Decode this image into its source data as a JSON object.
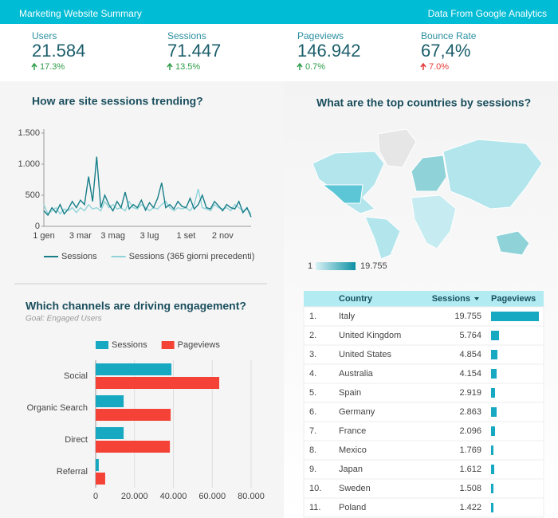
{
  "header": {
    "title": "Marketing Website Summary",
    "source": "Data From Google Analytics"
  },
  "kpis": [
    {
      "label": "Users",
      "value": "21.584",
      "change": "17.3%",
      "change_color": "#2e9d48"
    },
    {
      "label": "Sessions",
      "value": "71.447",
      "change": "13.5%",
      "change_color": "#2e9d48"
    },
    {
      "label": "Pageviews",
      "value": "146.942",
      "change": "0.7%",
      "change_color": "#2e9d48"
    },
    {
      "label": "Bounce Rate",
      "value": "67,4%",
      "change": "7.0%",
      "change_color": "#e53935"
    }
  ],
  "chart_data": [
    {
      "type": "line",
      "title": "How are site sessions trending?",
      "categories": [
        "1 gen",
        null,
        null,
        null,
        null,
        null,
        null,
        null,
        null,
        "3 mar",
        null,
        null,
        null,
        null,
        null,
        null,
        null,
        "3 mag",
        null,
        null,
        null,
        null,
        null,
        null,
        null,
        null,
        "3 lug",
        null,
        null,
        null,
        null,
        null,
        null,
        null,
        null,
        "1 set",
        null,
        null,
        null,
        null,
        null,
        null,
        null,
        null,
        "2 nov",
        null,
        null,
        null,
        null,
        null,
        null,
        null
      ],
      "series": [
        {
          "name": "Sessions",
          "color": "#177e89",
          "values": [
            250,
            180,
            300,
            220,
            350,
            200,
            280,
            400,
            300,
            420,
            350,
            800,
            400,
            1120,
            300,
            500,
            350,
            250,
            400,
            300,
            550,
            280,
            350,
            300,
            420,
            260,
            380,
            300,
            450,
            700,
            300,
            350,
            280,
            400,
            320,
            300,
            450,
            280,
            350,
            500,
            300,
            280,
            400,
            330,
            250,
            350,
            300,
            280,
            400,
            220,
            300,
            150
          ]
        },
        {
          "name": "Sessions (365 giorni precedenti)",
          "color": "#8fd3d9",
          "values": [
            350,
            200,
            250,
            300,
            200,
            280,
            250,
            300,
            220,
            300,
            250,
            350,
            280,
            300,
            250,
            400,
            300,
            350,
            280,
            300,
            250,
            400,
            300,
            280,
            350,
            300,
            250,
            300,
            280,
            350,
            400,
            300,
            250,
            300,
            280,
            300,
            250,
            350,
            600,
            300,
            280,
            250,
            350,
            300,
            280,
            300,
            250,
            350,
            300,
            250,
            280,
            200
          ]
        }
      ],
      "ylim": [
        0,
        1500
      ],
      "yticks": [
        0,
        500,
        {
          "value": 1000,
          "label": "1.000"
        },
        {
          "value": 1500,
          "label": "1.500"
        }
      ]
    },
    {
      "type": "hbar",
      "title": "Which channels are driving engagement?",
      "subtitle": "Goal: Engaged Users",
      "categories": [
        "Social",
        "Organic Search",
        "Direct",
        "Referral"
      ],
      "series": [
        {
          "name": "Sessions",
          "color": "#17a9c1",
          "values": [
            39000,
            14400,
            14400,
            1600
          ]
        },
        {
          "name": "Pageviews",
          "color": "#f44336",
          "values": [
            63600,
            38600,
            38200,
            4900
          ]
        }
      ],
      "xlim": [
        0,
        80000
      ],
      "xticks": [
        0,
        {
          "value": 20000,
          "label": "20.000"
        },
        {
          "value": 40000,
          "label": "40.000"
        },
        {
          "value": 60000,
          "label": "60.000"
        },
        {
          "value": 80000,
          "label": "80.000"
        }
      ],
      "grid": true
    }
  ],
  "map": {
    "title": "What are the top countries by sessions?",
    "legend_min": 1,
    "legend_max": {
      "value": 19755,
      "label": "19.755"
    }
  },
  "table": {
    "columns": [
      "Country",
      "Sessions",
      "Pageviews"
    ],
    "rows": [
      {
        "rank": "1.",
        "country": "Italy",
        "sessions": "19.755",
        "pageviews": 42000
      },
      {
        "rank": "2.",
        "country": "United Kingdom",
        "sessions": "5.764",
        "pageviews": 7000
      },
      {
        "rank": "3.",
        "country": "United States",
        "sessions": "4.854",
        "pageviews": 5600
      },
      {
        "rank": "4.",
        "country": "Australia",
        "sessions": "4.154",
        "pageviews": 4900
      },
      {
        "rank": "5.",
        "country": "Spain",
        "sessions": "2.919",
        "pageviews": 3500
      },
      {
        "rank": "6.",
        "country": "Germany",
        "sessions": "2.863",
        "pageviews": 4900
      },
      {
        "rank": "7.",
        "country": "France",
        "sessions": "2.096",
        "pageviews": 3500
      },
      {
        "rank": "8.",
        "country": "Mexico",
        "sessions": "1.769",
        "pageviews": 2100
      },
      {
        "rank": "9.",
        "country": "Japan",
        "sessions": "1.612",
        "pageviews": 2800
      },
      {
        "rank": "10.",
        "country": "Sweden",
        "sessions": "1.508",
        "pageviews": 2100
      },
      {
        "rank": "11.",
        "country": "Poland",
        "sessions": "1.422",
        "pageviews": 2100
      }
    ]
  }
}
